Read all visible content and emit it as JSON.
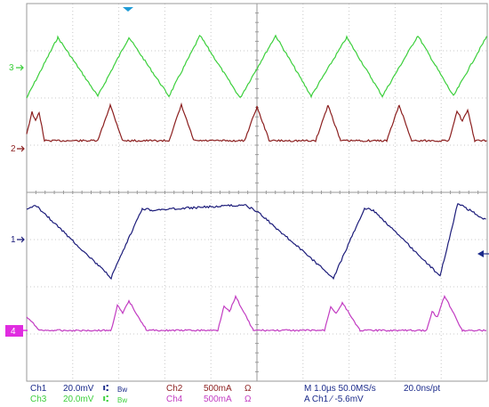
{
  "channel_markers": {
    "ch1": "1",
    "ch2": "2",
    "ch3": "3",
    "ch4": "4"
  },
  "readout": {
    "row1": {
      "ch1_label": "Ch1",
      "ch1_scale": "20.0mV",
      "ch1_coupling": "⑆",
      "ch1_bw": "Bw",
      "ch2_label": "Ch2",
      "ch2_scale": "500mA",
      "ch2_unit": "Ω",
      "timebase": "M 1.0µs 50.0MS/s",
      "resolution": "20.0ns/pt"
    },
    "row2": {
      "ch3_label": "Ch3",
      "ch3_scale": "20.0mV",
      "ch3_coupling": "⑆",
      "ch3_bw": "Bw",
      "ch4_label": "Ch4",
      "ch4_scale": "500mA",
      "ch4_unit": "Ω",
      "trigger": "A  Ch1  ∕  -5.6mV"
    }
  },
  "colors": {
    "ch1": "#1c1c7a",
    "ch2": "#8b1e1e",
    "ch3": "#3ccf3c",
    "ch4": "#c23cc2",
    "grid": "#c8c8c8",
    "label_blue": "#1a2a8a"
  }
}
